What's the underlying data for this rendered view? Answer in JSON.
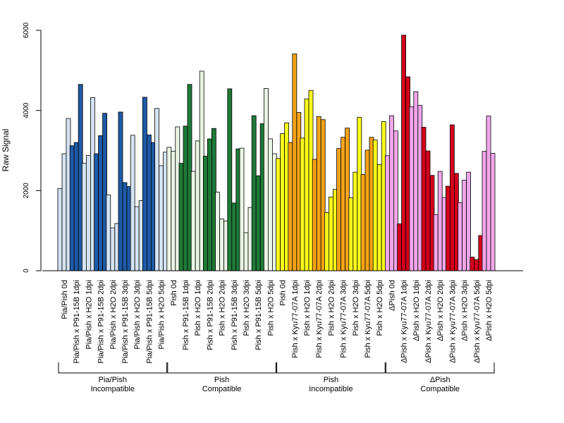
{
  "chart_data": {
    "type": "bar",
    "title": "",
    "xlabel": "",
    "ylabel": "Raw Signal",
    "ylim": [
      0,
      6000
    ],
    "yticks": [
      0,
      2000,
      4000,
      6000
    ],
    "replicates": 3,
    "categories": [
      "Pia/Pish 0d",
      "Pia/Pish x P91-15B 1dpi",
      "Pia/Pish x H2O 1dpi",
      "Pia/Pish x P91-15B 2dpi",
      "Pia/Pish x H2O 2dpi",
      "Pia/Pish x P91-15B 3dpi",
      "Pia/Pish x H2O 3dpi",
      "Pia/Pish x P91-15B 5dpi",
      "Pia/Pish x H2O 5dpi",
      "Pish 0d",
      "Pish x P91-15B 1dpi",
      "Pish x H2O 1dpi",
      "Pish x P91-15B 2dpi",
      "Pish x H2O 2dpi",
      "Pish x P91-15B 3dpi",
      "Pish x H2O 3dpi",
      "Pish x P91-15B 5dpi",
      "Pish x H2O 5dpi",
      "Pish 0d",
      "Pish x Kyu77-07A 1dpi",
      "Pish x H2O 1dpi",
      "Pish x Kyu77-07A 2dpi",
      "Pish x H2O 2dpi",
      "Pish x Kyu77-07A 3dpi",
      "Pish x H2O 3dpi",
      "Pish x Kyu77-07A 5dpi",
      "Pish x H2O 5dpi",
      "ΔPish 0d",
      "ΔPish x Kyu77-07A 1dpi",
      "ΔPish x H2O 1dpi",
      "ΔPish x Kyu77-07A 2dpi",
      "ΔPish x H2O 2dpi",
      "ΔPish x Kyu77-07A 3dpi",
      "ΔPish x H2O 3dpi",
      "ΔPish x Kyu77-07A 5dpi",
      "ΔPish x H2O 5dpi"
    ],
    "values": [
      [
        2050,
        2920,
        3800
      ],
      [
        3120,
        3200,
        4650
      ],
      [
        2680,
        2880,
        4320
      ],
      [
        2920,
        3370,
        3930
      ],
      [
        1890,
        1070,
        1180
      ],
      [
        3960,
        2200,
        2100
      ],
      [
        3380,
        1600,
        1750
      ],
      [
        4330,
        3390,
        3200
      ],
      [
        4050,
        2620,
        2960
      ],
      [
        3080,
        2980,
        3590
      ],
      [
        2680,
        3610,
        4650
      ],
      [
        2480,
        3240,
        4980
      ],
      [
        2860,
        3290,
        3550
      ],
      [
        1960,
        1290,
        1240
      ],
      [
        4540,
        1690,
        3040
      ],
      [
        3060,
        950,
        1580
      ],
      [
        3870,
        2370,
        3670
      ],
      [
        4550,
        3290,
        2920
      ],
      [
        2800,
        3420,
        3690
      ],
      [
        3200,
        5410,
        3950
      ],
      [
        3310,
        4290,
        4500
      ],
      [
        2780,
        3850,
        3770
      ],
      [
        1450,
        1840,
        2030
      ],
      [
        3050,
        3330,
        3560
      ],
      [
        1820,
        2460,
        3830
      ],
      [
        2400,
        3010,
        3330
      ],
      [
        3260,
        2650,
        3720
      ],
      [
        2870,
        3870,
        3490
      ],
      [
        1170,
        5880,
        4840
      ],
      [
        4090,
        4470,
        4130
      ],
      [
        3580,
        2990,
        2380
      ],
      [
        1400,
        2480,
        1830
      ],
      [
        2110,
        3640,
        2430
      ],
      [
        1700,
        2260,
        2460
      ],
      [
        340,
        280,
        880
      ],
      [
        2980,
        3860,
        2930
      ]
    ],
    "bar_colors": [
      "#d4e3f2",
      "#1f5aa6",
      "#d4e3f2",
      "#1f5aa6",
      "#d4e3f2",
      "#1f5aa6",
      "#d4e3f2",
      "#1f5aa6",
      "#d4e3f2",
      "#eaf5e4",
      "#1f7a38",
      "#eaf5e4",
      "#1f7a38",
      "#eaf5e4",
      "#1f7a38",
      "#eaf5e4",
      "#1f7a38",
      "#eaf5e4",
      "#fbfb1a",
      "#f4a317",
      "#fbfb1a",
      "#f4a317",
      "#fbfb1a",
      "#f4a317",
      "#fbfb1a",
      "#f4a317",
      "#fbfb1a",
      "#f2a6ea",
      "#d4001b",
      "#f2a6ea",
      "#d4001b",
      "#f2a6ea",
      "#d4001b",
      "#f2a6ea",
      "#d4001b",
      "#f2a6ea"
    ],
    "groups": [
      {
        "line1": "Pia/Pish",
        "line2": "Incompatible",
        "start": 0,
        "end": 8
      },
      {
        "line1": "Pish",
        "line2": "Compatible",
        "start": 9,
        "end": 17
      },
      {
        "line1": "Pish",
        "line2": "Incompatible",
        "start": 18,
        "end": 26
      },
      {
        "line1": "ΔPish",
        "line2": "Compatible",
        "start": 27,
        "end": 35
      }
    ],
    "grid": false,
    "legend": "none"
  }
}
